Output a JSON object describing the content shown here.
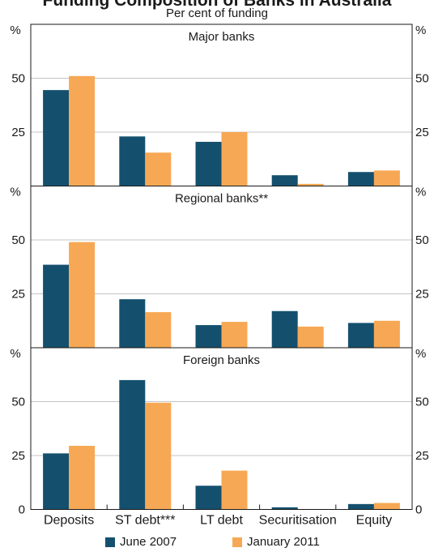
{
  "chart_data": {
    "type": "bar",
    "title": "Funding Composition of Banks in Australia",
    "subtitle": "Per cent of funding",
    "categories": [
      "Deposits",
      "ST debt***",
      "LT debt",
      "Securitisation",
      "Equity"
    ],
    "unit_label": "%",
    "ylim": [
      0,
      75
    ],
    "yticks": [
      0,
      25,
      50
    ],
    "grid": true,
    "legend_position": "bottom",
    "series_names": [
      "June 2007",
      "January 2011"
    ],
    "colors": {
      "June 2007": "#14506e",
      "January 2011": "#f7a854"
    },
    "panels": [
      {
        "label": "Major banks",
        "series": [
          {
            "name": "June 2007",
            "values": [
              44.5,
              23,
              20.5,
              5,
              6.5
            ]
          },
          {
            "name": "January 2011",
            "values": [
              51,
              15.5,
              25,
              1,
              7.2
            ]
          }
        ]
      },
      {
        "label": "Regional banks**",
        "series": [
          {
            "name": "June 2007",
            "values": [
              38.5,
              22.5,
              10.5,
              17,
              11.5
            ]
          },
          {
            "name": "January 2011",
            "values": [
              49,
              16.5,
              12,
              9.8,
              12.5
            ]
          }
        ]
      },
      {
        "label": "Foreign banks",
        "series": [
          {
            "name": "June 2007",
            "values": [
              26,
              60,
              11,
              1,
              2.5
            ]
          },
          {
            "name": "January 2011",
            "values": [
              29.5,
              49.5,
              18,
              0.2,
              3
            ]
          }
        ]
      }
    ]
  }
}
